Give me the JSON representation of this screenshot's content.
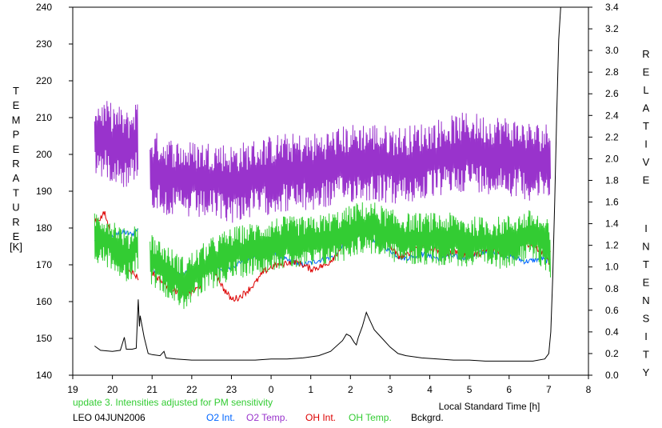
{
  "chart_data": {
    "type": "line",
    "left_axis_label": "TEMPERATURE",
    "left_axis_unit": "[K]",
    "right_axis_label": "RELATIVE INTENSITY",
    "xlabel": "Local Standard Time [h]",
    "xlim": [
      19,
      32
    ],
    "ylim_left": [
      140,
      240
    ],
    "ylim_right": [
      0,
      3.4
    ],
    "x_ticks": [
      19,
      20,
      21,
      22,
      23,
      24,
      25,
      26,
      27,
      28,
      29,
      30,
      31,
      32
    ],
    "x_tick_labels": [
      "19",
      "20",
      "21",
      "22",
      "23",
      "0",
      "1",
      "2",
      "3",
      "4",
      "5",
      "6",
      "7",
      "8"
    ],
    "left_ticks": [
      140,
      150,
      160,
      170,
      180,
      190,
      200,
      210,
      220,
      230,
      240
    ],
    "left_tick_labels": [
      "140",
      "150",
      "160",
      "170",
      "180",
      "190",
      "200",
      "210",
      "220",
      "230",
      "240"
    ],
    "right_ticks": [
      0,
      0.2,
      0.4,
      0.6,
      0.8,
      1.0,
      1.2,
      1.4,
      1.6,
      1.8,
      2.0,
      2.2,
      2.4,
      2.6,
      2.8,
      3.0,
      3.2,
      3.4
    ],
    "right_tick_labels": [
      "0.0",
      "0.2",
      "0.4",
      "0.6",
      "0.8",
      "1.0",
      "1.2",
      "1.4",
      "1.6",
      "1.8",
      "2.0",
      "2.2",
      "2.4",
      "2.6",
      "2.8",
      "3.0",
      "3.2",
      "3.4"
    ],
    "note": "update 3. Intensities adjusted for PM sensitivity",
    "station_date": "LEO 04JUN2006",
    "series": [
      {
        "name": "O2 Int.",
        "color": "#0066ff",
        "axis": "right",
        "style": "smooth",
        "noise": 0.025,
        "segments": [
          [
            [
              19.55,
              1.24
            ],
            [
              19.7,
              1.28
            ],
            [
              19.9,
              1.27
            ],
            [
              20.1,
              1.3
            ],
            [
              20.3,
              1.32
            ],
            [
              20.5,
              1.3
            ],
            [
              20.65,
              1.36
            ]
          ],
          [
            [
              21.0,
              0.98
            ],
            [
              21.2,
              0.96
            ],
            [
              21.4,
              0.93
            ],
            [
              21.6,
              0.92
            ],
            [
              21.8,
              0.94
            ],
            [
              22.0,
              0.96
            ],
            [
              22.2,
              1.0
            ],
            [
              22.4,
              1.04
            ],
            [
              22.6,
              1.0
            ],
            [
              22.8,
              0.98
            ],
            [
              23.0,
              1.0
            ],
            [
              23.2,
              1.04
            ],
            [
              23.4,
              1.07
            ],
            [
              23.6,
              1.1
            ],
            [
              23.8,
              1.15
            ],
            [
              24.0,
              1.18
            ],
            [
              24.2,
              1.1
            ],
            [
              24.4,
              1.06
            ],
            [
              24.6,
              1.04
            ],
            [
              24.8,
              1.02
            ],
            [
              25.0,
              1.04
            ],
            [
              25.2,
              1.06
            ],
            [
              25.4,
              1.08
            ],
            [
              25.6,
              1.1
            ],
            [
              25.8,
              1.2
            ],
            [
              26.0,
              1.28
            ],
            [
              26.2,
              1.3
            ],
            [
              26.4,
              1.28
            ],
            [
              26.6,
              1.25
            ],
            [
              26.8,
              1.2
            ],
            [
              27.0,
              1.15
            ],
            [
              27.2,
              1.1
            ],
            [
              27.4,
              1.08
            ],
            [
              27.6,
              1.1
            ],
            [
              27.8,
              1.12
            ],
            [
              28.0,
              1.1
            ],
            [
              28.2,
              1.08
            ],
            [
              28.4,
              1.1
            ],
            [
              28.6,
              1.1
            ],
            [
              28.8,
              1.08
            ],
            [
              29.0,
              1.1
            ],
            [
              29.2,
              1.12
            ],
            [
              29.4,
              1.15
            ],
            [
              29.6,
              1.15
            ],
            [
              29.8,
              1.12
            ],
            [
              30.0,
              1.1
            ],
            [
              30.2,
              1.08
            ],
            [
              30.4,
              1.05
            ],
            [
              30.6,
              1.06
            ],
            [
              30.8,
              1.08
            ],
            [
              31.0,
              1.05
            ],
            [
              31.05,
              1.1
            ]
          ]
        ]
      },
      {
        "name": "O2 Temp.",
        "color": "#9933cc",
        "axis": "left",
        "style": "spiky",
        "amp": 9,
        "segments": [
          [
            [
              19.55,
              205
            ],
            [
              19.8,
              204
            ],
            [
              20.1,
              203
            ],
            [
              20.4,
              201
            ],
            [
              20.65,
              205
            ]
          ],
          [
            [
              20.95,
              196
            ],
            [
              21.4,
              194
            ],
            [
              21.8,
              193
            ],
            [
              22.2,
              193
            ],
            [
              22.6,
              193
            ],
            [
              23.0,
              192
            ],
            [
              23.4,
              193
            ],
            [
              23.8,
              194
            ],
            [
              24.2,
              195
            ],
            [
              24.6,
              195
            ],
            [
              25.0,
              195
            ],
            [
              25.4,
              196
            ],
            [
              25.8,
              197
            ],
            [
              26.2,
              198
            ],
            [
              26.6,
              198
            ],
            [
              27.0,
              197
            ],
            [
              27.4,
              197
            ],
            [
              27.8,
              198
            ],
            [
              28.2,
              199
            ],
            [
              28.6,
              200
            ],
            [
              29.0,
              201
            ],
            [
              29.4,
              200
            ],
            [
              29.8,
              200
            ],
            [
              30.2,
              199
            ],
            [
              30.6,
              198
            ],
            [
              31.0,
              198
            ],
            [
              31.05,
              203
            ]
          ]
        ]
      },
      {
        "name": "OH Int.",
        "color": "#dd0000",
        "axis": "right",
        "style": "smooth",
        "noise": 0.03,
        "segments": [
          [
            [
              19.55,
              1.43
            ],
            [
              19.7,
              1.45
            ],
            [
              19.8,
              1.5
            ],
            [
              19.9,
              1.38
            ],
            [
              20.0,
              1.25
            ],
            [
              20.1,
              1.18
            ],
            [
              20.3,
              1.05
            ],
            [
              20.5,
              0.95
            ],
            [
              20.65,
              0.9
            ]
          ],
          [
            [
              21.0,
              0.95
            ],
            [
              21.2,
              0.88
            ],
            [
              21.4,
              0.82
            ],
            [
              21.6,
              0.78
            ],
            [
              21.8,
              0.75
            ],
            [
              22.0,
              0.76
            ],
            [
              22.2,
              0.82
            ],
            [
              22.4,
              1.04
            ],
            [
              22.5,
              1.1
            ],
            [
              22.6,
              0.95
            ],
            [
              22.8,
              0.8
            ],
            [
              23.0,
              0.7
            ],
            [
              23.2,
              0.72
            ],
            [
              23.4,
              0.78
            ],
            [
              23.6,
              0.85
            ],
            [
              23.8,
              0.95
            ],
            [
              24.0,
              1.0
            ],
            [
              24.2,
              1.02
            ],
            [
              24.4,
              1.04
            ],
            [
              24.6,
              1.05
            ],
            [
              24.8,
              1.02
            ],
            [
              25.0,
              0.98
            ],
            [
              25.2,
              1.0
            ],
            [
              25.4,
              1.02
            ],
            [
              25.6,
              1.1
            ],
            [
              25.8,
              1.2
            ],
            [
              26.0,
              1.25
            ],
            [
              26.2,
              1.3
            ],
            [
              26.4,
              1.35
            ],
            [
              26.5,
              1.4
            ],
            [
              26.6,
              1.38
            ],
            [
              26.8,
              1.3
            ],
            [
              27.0,
              1.2
            ],
            [
              27.2,
              1.1
            ],
            [
              27.4,
              1.1
            ],
            [
              27.6,
              1.18
            ],
            [
              27.8,
              1.2
            ],
            [
              28.0,
              1.18
            ],
            [
              28.2,
              1.15
            ],
            [
              28.4,
              1.12
            ],
            [
              28.6,
              1.15
            ],
            [
              28.8,
              1.12
            ],
            [
              29.0,
              1.1
            ],
            [
              29.2,
              1.12
            ],
            [
              29.4,
              1.15
            ],
            [
              29.6,
              1.15
            ],
            [
              29.8,
              1.12
            ],
            [
              30.0,
              1.2
            ],
            [
              30.2,
              1.25
            ],
            [
              30.4,
              1.22
            ],
            [
              30.6,
              1.2
            ],
            [
              30.8,
              1.15
            ],
            [
              31.0,
              1.05
            ],
            [
              31.05,
              1.15
            ]
          ]
        ]
      },
      {
        "name": "OH Temp.",
        "color": "#33cc33",
        "axis": "left",
        "style": "spiky",
        "amp": 6,
        "segments": [
          [
            [
              19.55,
              178
            ],
            [
              19.8,
              177
            ],
            [
              20.1,
              175
            ],
            [
              20.4,
              172
            ],
            [
              20.65,
              176
            ]
          ],
          [
            [
              20.95,
              172
            ],
            [
              21.4,
              168
            ],
            [
              21.8,
              165
            ],
            [
              22.2,
              168
            ],
            [
              22.6,
              171
            ],
            [
              23.0,
              173
            ],
            [
              23.4,
              174
            ],
            [
              23.8,
              175
            ],
            [
              24.2,
              176
            ],
            [
              24.6,
              176
            ],
            [
              25.0,
              176
            ],
            [
              25.4,
              177
            ],
            [
              25.8,
              178
            ],
            [
              26.2,
              180
            ],
            [
              26.6,
              180
            ],
            [
              27.0,
              178
            ],
            [
              27.4,
              177
            ],
            [
              27.8,
              177
            ],
            [
              28.2,
              177
            ],
            [
              28.6,
              177
            ],
            [
              29.0,
              176
            ],
            [
              29.4,
              176
            ],
            [
              29.8,
              176
            ],
            [
              30.2,
              177
            ],
            [
              30.6,
              178
            ],
            [
              31.0,
              175
            ],
            [
              31.05,
              172
            ]
          ]
        ]
      },
      {
        "name": "Bckgrd.",
        "color": "#000000",
        "axis": "right",
        "style": "smooth",
        "noise": 0.008,
        "segments": [
          [
            [
              19.55,
              0.27
            ],
            [
              19.7,
              0.23
            ],
            [
              20.0,
              0.22
            ],
            [
              20.2,
              0.23
            ],
            [
              20.3,
              0.35
            ],
            [
              20.35,
              0.24
            ],
            [
              20.5,
              0.24
            ],
            [
              20.6,
              0.25
            ],
            [
              20.65,
              0.7
            ],
            [
              20.68,
              0.45
            ],
            [
              20.7,
              0.55
            ],
            [
              20.75,
              0.45
            ],
            [
              20.8,
              0.35
            ],
            [
              20.9,
              0.2
            ],
            [
              21.0,
              0.19
            ],
            [
              21.2,
              0.18
            ],
            [
              21.3,
              0.22
            ],
            [
              21.35,
              0.16
            ],
            [
              21.6,
              0.15
            ],
            [
              22.0,
              0.14
            ],
            [
              22.4,
              0.14
            ],
            [
              22.8,
              0.14
            ],
            [
              23.2,
              0.14
            ],
            [
              23.6,
              0.14
            ],
            [
              24.0,
              0.15
            ],
            [
              24.4,
              0.15
            ],
            [
              24.8,
              0.16
            ],
            [
              25.2,
              0.18
            ],
            [
              25.5,
              0.22
            ],
            [
              25.8,
              0.32
            ],
            [
              25.9,
              0.38
            ],
            [
              26.0,
              0.36
            ],
            [
              26.1,
              0.3
            ],
            [
              26.15,
              0.28
            ],
            [
              26.2,
              0.35
            ],
            [
              26.3,
              0.45
            ],
            [
              26.4,
              0.58
            ],
            [
              26.5,
              0.5
            ],
            [
              26.6,
              0.42
            ],
            [
              26.8,
              0.34
            ],
            [
              27.0,
              0.26
            ],
            [
              27.2,
              0.2
            ],
            [
              27.4,
              0.18
            ],
            [
              27.8,
              0.16
            ],
            [
              28.2,
              0.15
            ],
            [
              28.6,
              0.14
            ],
            [
              29.0,
              0.14
            ],
            [
              29.4,
              0.13
            ],
            [
              29.8,
              0.13
            ],
            [
              30.2,
              0.13
            ],
            [
              30.6,
              0.13
            ],
            [
              30.9,
              0.15
            ],
            [
              31.0,
              0.2
            ],
            [
              31.05,
              0.4
            ],
            [
              31.1,
              0.9
            ],
            [
              31.15,
              1.6
            ],
            [
              31.2,
              2.4
            ],
            [
              31.25,
              3.1
            ],
            [
              31.3,
              3.4
            ]
          ]
        ]
      }
    ]
  }
}
